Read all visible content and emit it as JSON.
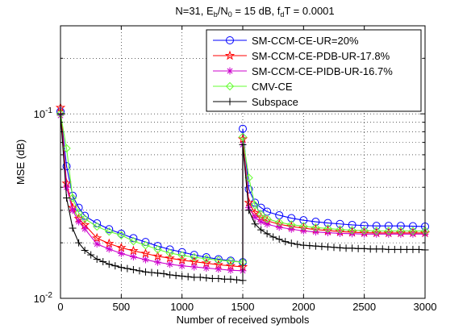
{
  "chart_data": {
    "type": "line",
    "title_parts": [
      "N=31, E",
      "b",
      "/N",
      "0",
      " = 15 dB, f",
      "d",
      "T = 0.0001"
    ],
    "xlabel": "Number of received symbols",
    "ylabel": "MSE (dB)",
    "xlim": [
      0,
      3000
    ],
    "ylim": [
      0.01,
      0.3
    ],
    "yscale": "log",
    "xticks": [
      0,
      500,
      1000,
      1500,
      2000,
      2500,
      3000
    ],
    "xtick_labels": [
      "0",
      "500",
      "1000",
      "1500",
      "2000",
      "2500",
      "3000"
    ],
    "yticks": [
      {
        "value": 0.01,
        "base": "10",
        "exp": "-2"
      },
      {
        "value": 0.1,
        "base": "10",
        "exp": "-1"
      }
    ],
    "grid": true,
    "legend_position": "top-right",
    "series": [
      {
        "name": "SM-CCM-CE-UR=20%",
        "color": "#0000ff",
        "marker": "circle",
        "x": [
          0,
          50,
          100,
          150,
          200,
          300,
          400,
          500,
          600,
          700,
          800,
          900,
          1000,
          1100,
          1200,
          1300,
          1400,
          1500,
          1500,
          1550,
          1600,
          1650,
          1700,
          1800,
          1900,
          2000,
          2100,
          2200,
          2300,
          2400,
          2500,
          2600,
          2700,
          2800,
          2900,
          3000
        ],
        "y": [
          0.103,
          0.052,
          0.036,
          0.031,
          0.028,
          0.0255,
          0.0237,
          0.0224,
          0.0212,
          0.0202,
          0.0192,
          0.0184,
          0.0178,
          0.0172,
          0.0167,
          0.0163,
          0.016,
          0.0157,
          0.083,
          0.039,
          0.033,
          0.031,
          0.0295,
          0.0282,
          0.0272,
          0.0265,
          0.026,
          0.0256,
          0.0253,
          0.025,
          0.0248,
          0.0247,
          0.0247,
          0.0247,
          0.0246,
          0.0245
        ]
      },
      {
        "name": "SM-CCM-CE-PDB-UR-17.8%",
        "color": "#ff0000",
        "marker": "star",
        "x": [
          0,
          50,
          100,
          150,
          200,
          300,
          400,
          500,
          600,
          700,
          800,
          900,
          1000,
          1100,
          1200,
          1300,
          1400,
          1500,
          1500,
          1550,
          1600,
          1650,
          1700,
          1800,
          1900,
          2000,
          2100,
          2200,
          2300,
          2400,
          2500,
          2600,
          2700,
          2800,
          2900,
          3000
        ],
        "y": [
          0.108,
          0.042,
          0.031,
          0.027,
          0.025,
          0.0212,
          0.0198,
          0.0188,
          0.0181,
          0.0175,
          0.0169,
          0.0165,
          0.0161,
          0.0158,
          0.0155,
          0.0152,
          0.015,
          0.0148,
          0.073,
          0.033,
          0.029,
          0.0275,
          0.0263,
          0.0252,
          0.0245,
          0.024,
          0.0236,
          0.0233,
          0.023,
          0.0228,
          0.0227,
          0.0226,
          0.0226,
          0.0226,
          0.0226,
          0.0226
        ]
      },
      {
        "name": "SM-CCM-CE-PIDB-UR-16.7%",
        "color": "#cc00cc",
        "marker": "asterisk",
        "x": [
          0,
          50,
          100,
          150,
          200,
          300,
          400,
          500,
          600,
          700,
          800,
          900,
          1000,
          1100,
          1200,
          1300,
          1400,
          1500,
          1500,
          1550,
          1600,
          1650,
          1700,
          1800,
          1900,
          2000,
          2100,
          2200,
          2300,
          2400,
          2500,
          2600,
          2700,
          2800,
          2900,
          3000
        ],
        "y": [
          0.098,
          0.04,
          0.03,
          0.026,
          0.0238,
          0.0197,
          0.0185,
          0.0175,
          0.0168,
          0.0162,
          0.0157,
          0.0153,
          0.015,
          0.0148,
          0.0146,
          0.0144,
          0.0142,
          0.0141,
          0.068,
          0.031,
          0.0275,
          0.026,
          0.0252,
          0.0243,
          0.0237,
          0.0232,
          0.0229,
          0.0227,
          0.0225,
          0.0224,
          0.0223,
          0.0223,
          0.0223,
          0.0223,
          0.0223,
          0.0223
        ]
      },
      {
        "name": "CMV-CE",
        "color": "#66ff33",
        "marker": "diamond",
        "x": [
          0,
          50,
          100,
          150,
          200,
          300,
          400,
          500,
          600,
          700,
          800,
          900,
          1000,
          1100,
          1200,
          1300,
          1400,
          1500,
          1500,
          1550,
          1600,
          1650,
          1700,
          1800,
          1900,
          2000,
          2100,
          2200,
          2300,
          2400,
          2500,
          2600,
          2700,
          2800,
          2900,
          3000
        ],
        "y": [
          0.1,
          0.065,
          0.035,
          0.029,
          0.027,
          0.0245,
          0.023,
          0.022,
          0.0204,
          0.0194,
          0.0184,
          0.0176,
          0.0171,
          0.0167,
          0.0164,
          0.0161,
          0.0159,
          0.0157,
          0.075,
          0.045,
          0.032,
          0.0285,
          0.027,
          0.0258,
          0.0251,
          0.0246,
          0.0242,
          0.0239,
          0.0236,
          0.0234,
          0.0233,
          0.0232,
          0.0232,
          0.0232,
          0.0232,
          0.0232
        ]
      },
      {
        "name": "Subspace",
        "color": "#000000",
        "marker": "plus",
        "x": [
          0,
          50,
          100,
          150,
          200,
          250,
          300,
          350,
          400,
          450,
          500,
          550,
          600,
          650,
          700,
          750,
          800,
          850,
          900,
          950,
          1000,
          1050,
          1100,
          1150,
          1200,
          1250,
          1300,
          1350,
          1400,
          1450,
          1500,
          1500,
          1550,
          1600,
          1650,
          1700,
          1750,
          1800,
          1850,
          1900,
          1950,
          2000,
          2050,
          2100,
          2150,
          2200,
          2250,
          2300,
          2350,
          2400,
          2450,
          2500,
          2550,
          2600,
          2650,
          2700,
          2750,
          2800,
          2850,
          2900,
          2950,
          3000
        ],
        "y": [
          0.1,
          0.035,
          0.024,
          0.02,
          0.0182,
          0.0172,
          0.0163,
          0.0158,
          0.0153,
          0.015,
          0.0147,
          0.0145,
          0.0143,
          0.0141,
          0.0139,
          0.0138,
          0.0137,
          0.0136,
          0.0134,
          0.0133,
          0.0132,
          0.0131,
          0.013,
          0.013,
          0.0129,
          0.0128,
          0.0128,
          0.0127,
          0.0127,
          0.0126,
          0.0125,
          0.068,
          0.03,
          0.0253,
          0.0235,
          0.0224,
          0.0215,
          0.0209,
          0.0203,
          0.0199,
          0.0196,
          0.0194,
          0.0193,
          0.0192,
          0.0191,
          0.019,
          0.0189,
          0.0188,
          0.0187,
          0.0187,
          0.0186,
          0.0186,
          0.0185,
          0.0185,
          0.0185,
          0.0184,
          0.0184,
          0.0184,
          0.0184,
          0.0184,
          0.0184,
          0.0183
        ]
      }
    ]
  }
}
